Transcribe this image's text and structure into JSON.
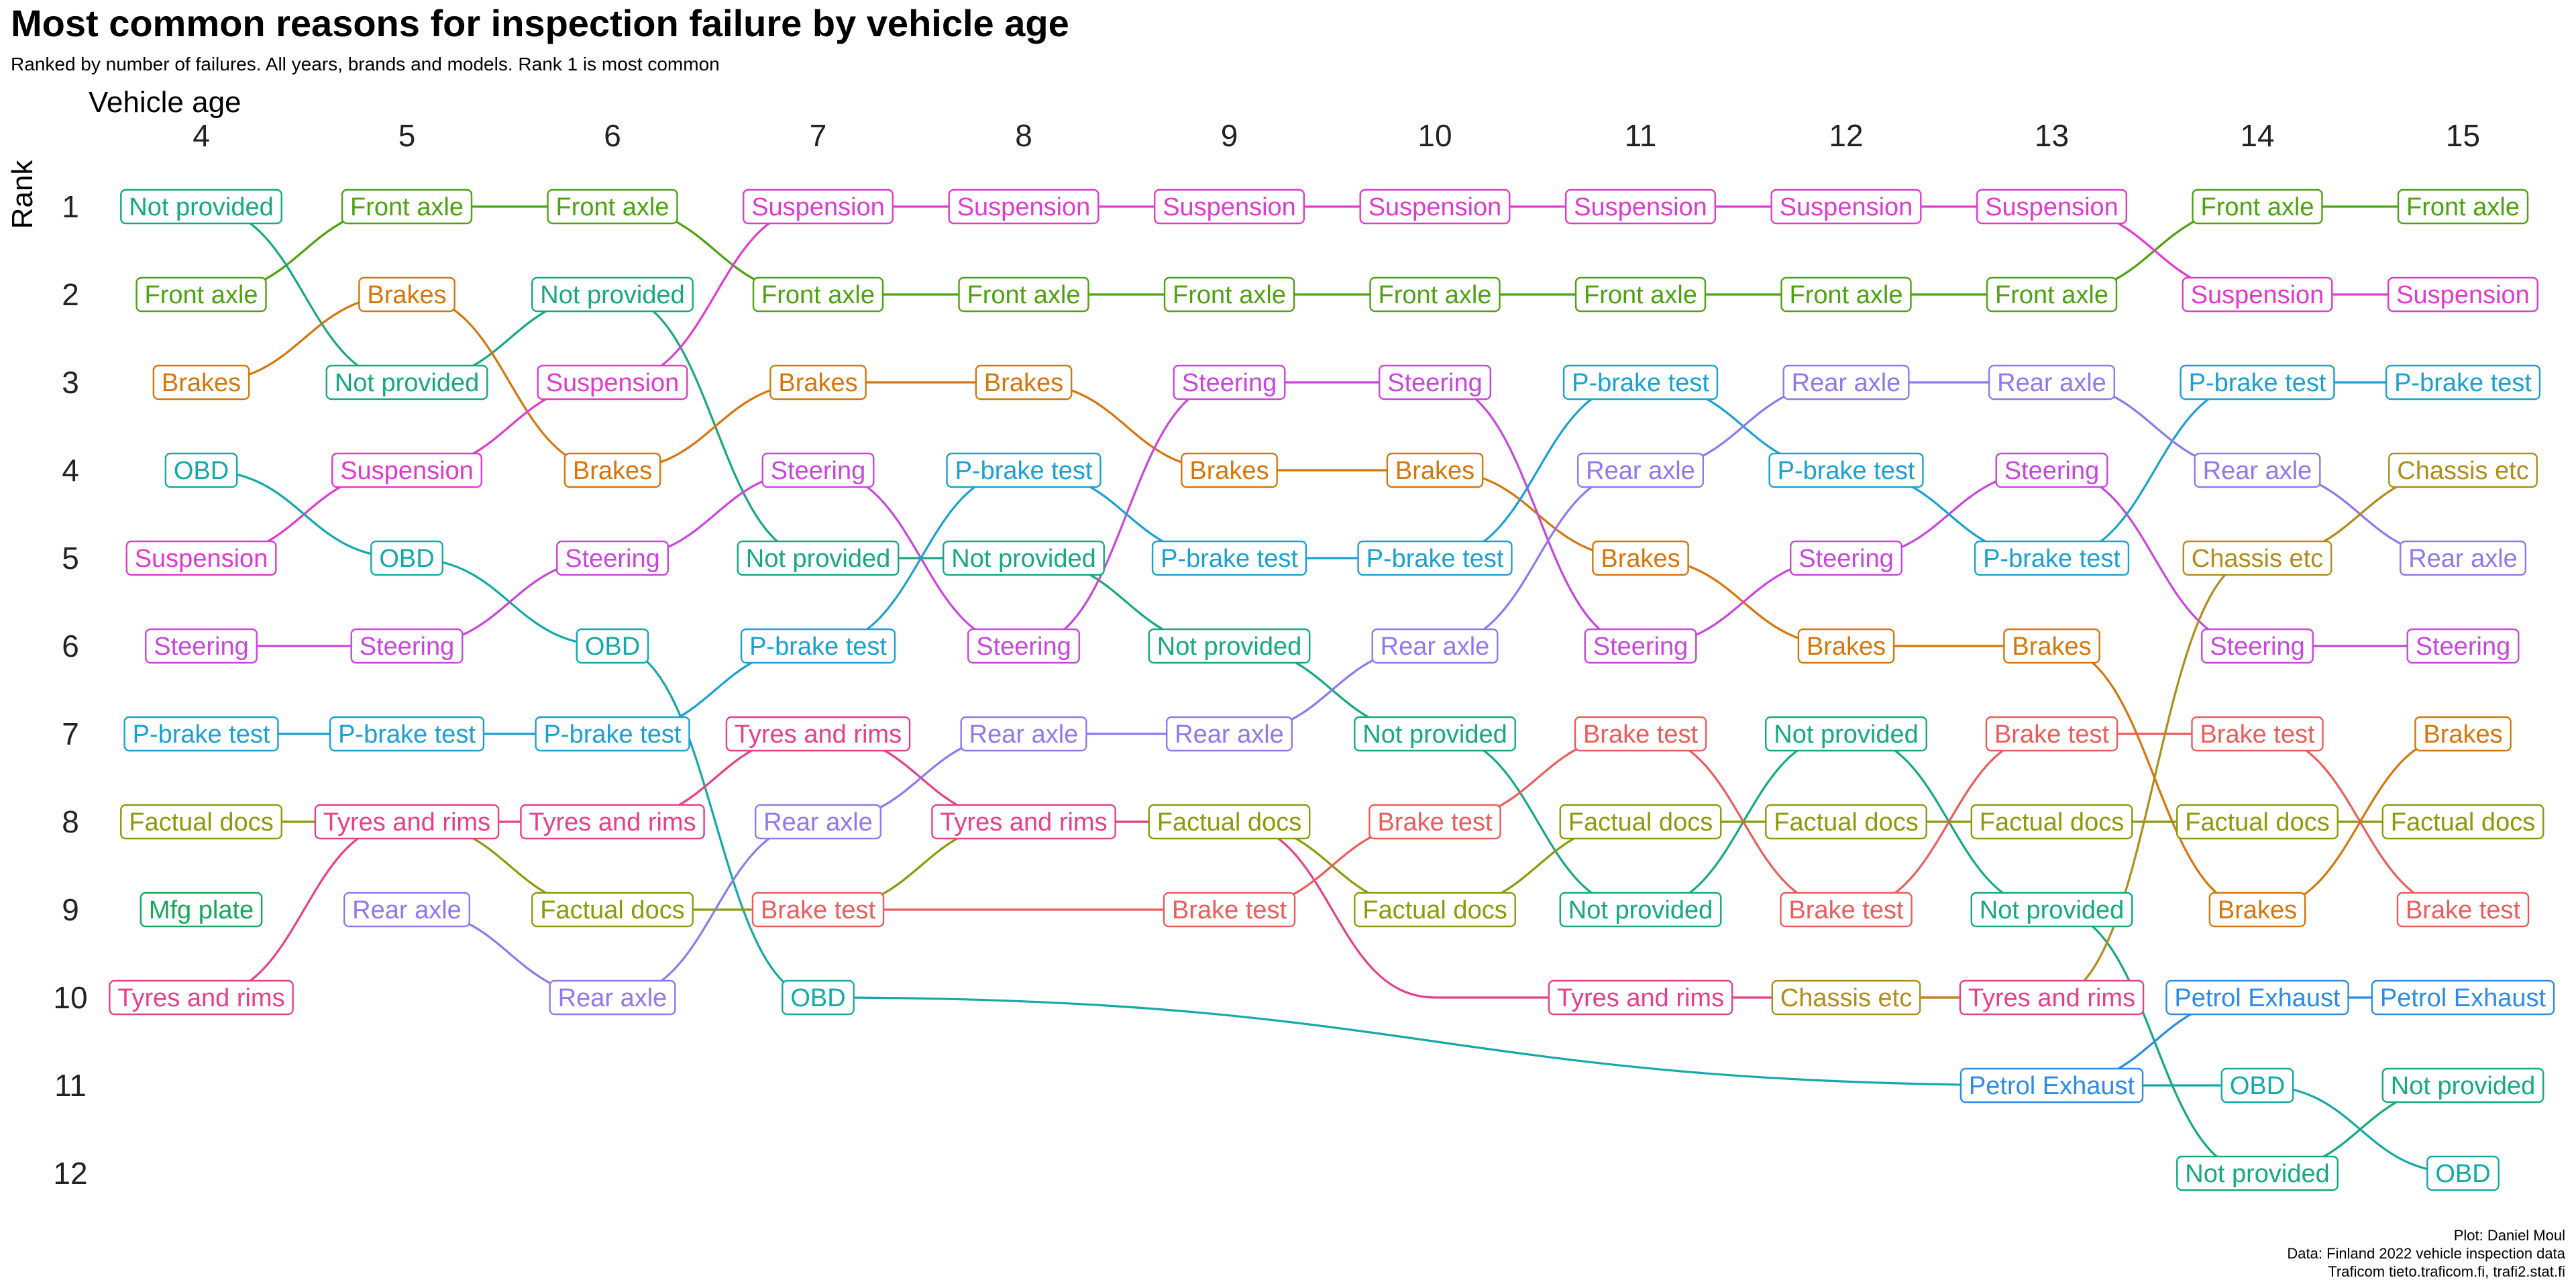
{
  "title": "Most common reasons for inspection failure by vehicle age",
  "subtitle": "Ranked by number of failures. All years, brands and models. Rank 1 is most common",
  "credits": [
    "Plot: Daniel Moul",
    "Data: Finland 2022 vehicle inspection data",
    "Traficom tieto.traficom.fi, trafi2.stat.fi"
  ],
  "chart_data": {
    "type": "line",
    "subtype": "bump",
    "xlabel": "Vehicle age",
    "ylabel": "Rank",
    "x": [
      4,
      5,
      6,
      7,
      8,
      9,
      10,
      11,
      12,
      13,
      14,
      15
    ],
    "ranks": [
      1,
      2,
      3,
      4,
      5,
      6,
      7,
      8,
      9,
      10,
      11,
      12
    ],
    "x_axis_position": "top",
    "y_reversed": true,
    "grid": false,
    "legend": "none",
    "series": [
      {
        "name": "Front axle",
        "color": "#4DA20F",
        "values": [
          2,
          1,
          1,
          2,
          2,
          2,
          2,
          2,
          2,
          2,
          1,
          1
        ]
      },
      {
        "name": "Not provided",
        "color": "#14A97E",
        "values": [
          1,
          3,
          2,
          5,
          5,
          6,
          7,
          9,
          7,
          9,
          12,
          11
        ]
      },
      {
        "name": "Brakes",
        "color": "#D6760A",
        "values": [
          3,
          2,
          4,
          3,
          3,
          4,
          4,
          5,
          6,
          6,
          9,
          7
        ]
      },
      {
        "name": "Suspension",
        "color": "#E13ACF",
        "values": [
          5,
          4,
          3,
          1,
          1,
          1,
          1,
          1,
          1,
          1,
          2,
          2
        ]
      },
      {
        "name": "OBD",
        "color": "#13A9A9",
        "values": [
          4,
          5,
          6,
          10,
          null,
          null,
          null,
          null,
          null,
          null,
          11,
          12
        ]
      },
      {
        "name": "Steering",
        "color": "#C946DE",
        "values": [
          6,
          6,
          5,
          4,
          6,
          3,
          3,
          6,
          5,
          4,
          6,
          6
        ]
      },
      {
        "name": "P-brake test",
        "color": "#1AA0D4",
        "values": [
          7,
          7,
          7,
          6,
          4,
          5,
          5,
          3,
          4,
          5,
          3,
          3
        ]
      },
      {
        "name": "Factual docs",
        "color": "#8C9A0A",
        "values": [
          8,
          8,
          9,
          9,
          8,
          8,
          9,
          8,
          8,
          8,
          8,
          8
        ]
      },
      {
        "name": "Tyres and rims",
        "color": "#E83E8E",
        "values": [
          10,
          8,
          8,
          7,
          8,
          8,
          10,
          10,
          10,
          10,
          null,
          null
        ]
      },
      {
        "name": "Rear axle",
        "color": "#8F78F0",
        "values": [
          null,
          9,
          10,
          8,
          7,
          7,
          6,
          4,
          3,
          3,
          4,
          5
        ]
      },
      {
        "name": "Brake test",
        "color": "#EC5C5C",
        "values": [
          null,
          null,
          null,
          9,
          9,
          9,
          8,
          7,
          9,
          7,
          7,
          9
        ]
      },
      {
        "name": "Chassis etc",
        "color": "#B18C1A",
        "values": [
          null,
          null,
          null,
          null,
          null,
          null,
          null,
          null,
          10,
          10,
          5,
          4
        ]
      },
      {
        "name": "Petrol Exhaust",
        "color": "#2C8BE8",
        "values": [
          null,
          null,
          null,
          null,
          null,
          null,
          null,
          null,
          null,
          11,
          10,
          10
        ]
      },
      {
        "name": "Mfg plate",
        "color": "#16A85A",
        "values": [
          9,
          null,
          null,
          null,
          null,
          null,
          null,
          null,
          null,
          null,
          null,
          null
        ]
      }
    ],
    "edges": [
      {
        "series": "OBD",
        "from": [
          7,
          10
        ],
        "to": [
          13,
          11
        ],
        "color": "#13A9A9"
      },
      {
        "series": "OBD",
        "from": [
          13,
          11
        ],
        "to": [
          14,
          11
        ],
        "color": "#13A9A9"
      }
    ],
    "labels": [
      {
        "x": 4,
        "rank": 1,
        "text": "Not provided",
        "color": "#14A97E"
      },
      {
        "x": 4,
        "rank": 2,
        "text": "Front axle",
        "color": "#4DA20F"
      },
      {
        "x": 4,
        "rank": 3,
        "text": "Brakes",
        "color": "#D6760A"
      },
      {
        "x": 4,
        "rank": 4,
        "text": "OBD",
        "color": "#13A9A9"
      },
      {
        "x": 4,
        "rank": 5,
        "text": "Suspension",
        "color": "#E13ACF"
      },
      {
        "x": 4,
        "rank": 6,
        "text": "Steering",
        "color": "#C946DE"
      },
      {
        "x": 4,
        "rank": 7,
        "text": "P-brake test",
        "color": "#1AA0D4"
      },
      {
        "x": 4,
        "rank": 8,
        "text": "Factual docs",
        "color": "#8C9A0A"
      },
      {
        "x": 4,
        "rank": 9,
        "text": "Mfg plate",
        "color": "#16A85A"
      },
      {
        "x": 4,
        "rank": 10,
        "text": "Tyres and rims",
        "color": "#E83E8E"
      },
      {
        "x": 5,
        "rank": 1,
        "text": "Front axle",
        "color": "#4DA20F"
      },
      {
        "x": 5,
        "rank": 2,
        "text": "Brakes",
        "color": "#D6760A"
      },
      {
        "x": 5,
        "rank": 3,
        "text": "Not provided",
        "color": "#14A97E"
      },
      {
        "x": 5,
        "rank": 4,
        "text": "Suspension",
        "color": "#E13ACF"
      },
      {
        "x": 5,
        "rank": 5,
        "text": "OBD",
        "color": "#13A9A9"
      },
      {
        "x": 5,
        "rank": 6,
        "text": "Steering",
        "color": "#C946DE"
      },
      {
        "x": 5,
        "rank": 7,
        "text": "P-brake test",
        "color": "#1AA0D4"
      },
      {
        "x": 5,
        "rank": 8,
        "text": "Tyres and rims",
        "color": "#E83E8E"
      },
      {
        "x": 5,
        "rank": 9,
        "text": "Rear axle",
        "color": "#8F78F0"
      },
      {
        "x": 6,
        "rank": 1,
        "text": "Front axle",
        "color": "#4DA20F"
      },
      {
        "x": 6,
        "rank": 2,
        "text": "Not provided",
        "color": "#14A97E"
      },
      {
        "x": 6,
        "rank": 3,
        "text": "Suspension",
        "color": "#E13ACF"
      },
      {
        "x": 6,
        "rank": 4,
        "text": "Brakes",
        "color": "#D6760A"
      },
      {
        "x": 6,
        "rank": 5,
        "text": "Steering",
        "color": "#C946DE"
      },
      {
        "x": 6,
        "rank": 6,
        "text": "OBD",
        "color": "#13A9A9"
      },
      {
        "x": 6,
        "rank": 7,
        "text": "P-brake test",
        "color": "#1AA0D4"
      },
      {
        "x": 6,
        "rank": 8,
        "text": "Tyres and rims",
        "color": "#E83E8E"
      },
      {
        "x": 6,
        "rank": 9,
        "text": "Factual docs",
        "color": "#8C9A0A"
      },
      {
        "x": 6,
        "rank": 10,
        "text": "Rear axle",
        "color": "#8F78F0"
      },
      {
        "x": 7,
        "rank": 1,
        "text": "Suspension",
        "color": "#E13ACF"
      },
      {
        "x": 7,
        "rank": 2,
        "text": "Front axle",
        "color": "#4DA20F"
      },
      {
        "x": 7,
        "rank": 3,
        "text": "Brakes",
        "color": "#D6760A"
      },
      {
        "x": 7,
        "rank": 4,
        "text": "Steering",
        "color": "#C946DE"
      },
      {
        "x": 7,
        "rank": 5,
        "text": "Not provided",
        "color": "#14A97E"
      },
      {
        "x": 7,
        "rank": 6,
        "text": "P-brake test",
        "color": "#1AA0D4"
      },
      {
        "x": 7,
        "rank": 7,
        "text": "Tyres and rims",
        "color": "#E83E8E"
      },
      {
        "x": 7,
        "rank": 8,
        "text": "Rear axle",
        "color": "#8F78F0"
      },
      {
        "x": 7,
        "rank": 9,
        "text": "Brake test",
        "color": "#EC5C5C"
      },
      {
        "x": 7,
        "rank": 10,
        "text": "OBD",
        "color": "#13A9A9"
      },
      {
        "x": 8,
        "rank": 1,
        "text": "Suspension",
        "color": "#E13ACF"
      },
      {
        "x": 8,
        "rank": 2,
        "text": "Front axle",
        "color": "#4DA20F"
      },
      {
        "x": 8,
        "rank": 3,
        "text": "Brakes",
        "color": "#D6760A"
      },
      {
        "x": 8,
        "rank": 4,
        "text": "P-brake test",
        "color": "#1AA0D4"
      },
      {
        "x": 8,
        "rank": 5,
        "text": "Not provided",
        "color": "#14A97E"
      },
      {
        "x": 8,
        "rank": 6,
        "text": "Steering",
        "color": "#C946DE"
      },
      {
        "x": 8,
        "rank": 7,
        "text": "Rear axle",
        "color": "#8F78F0"
      },
      {
        "x": 8,
        "rank": 8,
        "text": "Tyres and rims",
        "color": "#E83E8E"
      },
      {
        "x": 9,
        "rank": 1,
        "text": "Suspension",
        "color": "#E13ACF"
      },
      {
        "x": 9,
        "rank": 2,
        "text": "Front axle",
        "color": "#4DA20F"
      },
      {
        "x": 9,
        "rank": 3,
        "text": "Steering",
        "color": "#C946DE"
      },
      {
        "x": 9,
        "rank": 4,
        "text": "Brakes",
        "color": "#D6760A"
      },
      {
        "x": 9,
        "rank": 5,
        "text": "P-brake test",
        "color": "#1AA0D4"
      },
      {
        "x": 9,
        "rank": 6,
        "text": "Not provided",
        "color": "#14A97E"
      },
      {
        "x": 9,
        "rank": 7,
        "text": "Rear axle",
        "color": "#8F78F0"
      },
      {
        "x": 9,
        "rank": 8,
        "text": "Factual docs",
        "color": "#8C9A0A"
      },
      {
        "x": 9,
        "rank": 9,
        "text": "Brake test",
        "color": "#EC5C5C"
      },
      {
        "x": 10,
        "rank": 1,
        "text": "Suspension",
        "color": "#E13ACF"
      },
      {
        "x": 10,
        "rank": 2,
        "text": "Front axle",
        "color": "#4DA20F"
      },
      {
        "x": 10,
        "rank": 3,
        "text": "Steering",
        "color": "#C946DE"
      },
      {
        "x": 10,
        "rank": 4,
        "text": "Brakes",
        "color": "#D6760A"
      },
      {
        "x": 10,
        "rank": 5,
        "text": "P-brake test",
        "color": "#1AA0D4"
      },
      {
        "x": 10,
        "rank": 6,
        "text": "Rear axle",
        "color": "#8F78F0"
      },
      {
        "x": 10,
        "rank": 7,
        "text": "Not provided",
        "color": "#14A97E"
      },
      {
        "x": 10,
        "rank": 8,
        "text": "Brake test",
        "color": "#EC5C5C"
      },
      {
        "x": 10,
        "rank": 9,
        "text": "Factual docs",
        "color": "#8C9A0A"
      },
      {
        "x": 11,
        "rank": 1,
        "text": "Suspension",
        "color": "#E13ACF"
      },
      {
        "x": 11,
        "rank": 2,
        "text": "Front axle",
        "color": "#4DA20F"
      },
      {
        "x": 11,
        "rank": 3,
        "text": "P-brake test",
        "color": "#1AA0D4"
      },
      {
        "x": 11,
        "rank": 4,
        "text": "Rear axle",
        "color": "#8F78F0"
      },
      {
        "x": 11,
        "rank": 5,
        "text": "Brakes",
        "color": "#D6760A"
      },
      {
        "x": 11,
        "rank": 6,
        "text": "Steering",
        "color": "#C946DE"
      },
      {
        "x": 11,
        "rank": 7,
        "text": "Brake test",
        "color": "#EC5C5C"
      },
      {
        "x": 11,
        "rank": 8,
        "text": "Factual docs",
        "color": "#8C9A0A"
      },
      {
        "x": 11,
        "rank": 9,
        "text": "Not provided",
        "color": "#14A97E"
      },
      {
        "x": 11,
        "rank": 10,
        "text": "Tyres and rims",
        "color": "#E83E8E"
      },
      {
        "x": 12,
        "rank": 1,
        "text": "Suspension",
        "color": "#E13ACF"
      },
      {
        "x": 12,
        "rank": 2,
        "text": "Front axle",
        "color": "#4DA20F"
      },
      {
        "x": 12,
        "rank": 3,
        "text": "Rear axle",
        "color": "#8F78F0"
      },
      {
        "x": 12,
        "rank": 4,
        "text": "P-brake test",
        "color": "#1AA0D4"
      },
      {
        "x": 12,
        "rank": 5,
        "text": "Steering",
        "color": "#C946DE"
      },
      {
        "x": 12,
        "rank": 6,
        "text": "Brakes",
        "color": "#D6760A"
      },
      {
        "x": 12,
        "rank": 7,
        "text": "Not provided",
        "color": "#14A97E"
      },
      {
        "x": 12,
        "rank": 8,
        "text": "Factual docs",
        "color": "#8C9A0A"
      },
      {
        "x": 12,
        "rank": 9,
        "text": "Brake test",
        "color": "#EC5C5C"
      },
      {
        "x": 12,
        "rank": 10,
        "text": "Chassis etc",
        "color": "#B18C1A"
      },
      {
        "x": 13,
        "rank": 1,
        "text": "Suspension",
        "color": "#E13ACF"
      },
      {
        "x": 13,
        "rank": 2,
        "text": "Front axle",
        "color": "#4DA20F"
      },
      {
        "x": 13,
        "rank": 3,
        "text": "Rear axle",
        "color": "#8F78F0"
      },
      {
        "x": 13,
        "rank": 4,
        "text": "Steering",
        "color": "#C946DE"
      },
      {
        "x": 13,
        "rank": 5,
        "text": "P-brake test",
        "color": "#1AA0D4"
      },
      {
        "x": 13,
        "rank": 6,
        "text": "Brakes",
        "color": "#D6760A"
      },
      {
        "x": 13,
        "rank": 7,
        "text": "Brake test",
        "color": "#EC5C5C"
      },
      {
        "x": 13,
        "rank": 8,
        "text": "Factual docs",
        "color": "#8C9A0A"
      },
      {
        "x": 13,
        "rank": 9,
        "text": "Not provided",
        "color": "#14A97E"
      },
      {
        "x": 13,
        "rank": 10,
        "text": "Tyres and rims",
        "color": "#E83E8E"
      },
      {
        "x": 13,
        "rank": 11,
        "text": "Petrol Exhaust",
        "color": "#2C8BE8"
      },
      {
        "x": 14,
        "rank": 1,
        "text": "Front axle",
        "color": "#4DA20F"
      },
      {
        "x": 14,
        "rank": 2,
        "text": "Suspension",
        "color": "#E13ACF"
      },
      {
        "x": 14,
        "rank": 3,
        "text": "P-brake test",
        "color": "#1AA0D4"
      },
      {
        "x": 14,
        "rank": 4,
        "text": "Rear axle",
        "color": "#8F78F0"
      },
      {
        "x": 14,
        "rank": 5,
        "text": "Chassis etc",
        "color": "#B18C1A"
      },
      {
        "x": 14,
        "rank": 6,
        "text": "Steering",
        "color": "#C946DE"
      },
      {
        "x": 14,
        "rank": 7,
        "text": "Brake test",
        "color": "#EC5C5C"
      },
      {
        "x": 14,
        "rank": 8,
        "text": "Factual docs",
        "color": "#8C9A0A"
      },
      {
        "x": 14,
        "rank": 9,
        "text": "Brakes",
        "color": "#D6760A"
      },
      {
        "x": 14,
        "rank": 10,
        "text": "Petrol Exhaust",
        "color": "#2C8BE8"
      },
      {
        "x": 14,
        "rank": 11,
        "text": "OBD",
        "color": "#13A9A9"
      },
      {
        "x": 14,
        "rank": 12,
        "text": "Not provided",
        "color": "#14A97E"
      },
      {
        "x": 15,
        "rank": 1,
        "text": "Front axle",
        "color": "#4DA20F"
      },
      {
        "x": 15,
        "rank": 2,
        "text": "Suspension",
        "color": "#E13ACF"
      },
      {
        "x": 15,
        "rank": 3,
        "text": "P-brake test",
        "color": "#1AA0D4"
      },
      {
        "x": 15,
        "rank": 4,
        "text": "Chassis etc",
        "color": "#B18C1A"
      },
      {
        "x": 15,
        "rank": 5,
        "text": "Rear axle",
        "color": "#8F78F0"
      },
      {
        "x": 15,
        "rank": 6,
        "text": "Steering",
        "color": "#C946DE"
      },
      {
        "x": 15,
        "rank": 7,
        "text": "Brakes",
        "color": "#D6760A"
      },
      {
        "x": 15,
        "rank": 8,
        "text": "Factual docs",
        "color": "#8C9A0A"
      },
      {
        "x": 15,
        "rank": 9,
        "text": "Brake test",
        "color": "#EC5C5C"
      },
      {
        "x": 15,
        "rank": 10,
        "text": "Petrol Exhaust",
        "color": "#2C8BE8"
      },
      {
        "x": 15,
        "rank": 11,
        "text": "Not provided",
        "color": "#14A97E"
      },
      {
        "x": 15,
        "rank": 12,
        "text": "OBD",
        "color": "#13A9A9"
      }
    ]
  }
}
